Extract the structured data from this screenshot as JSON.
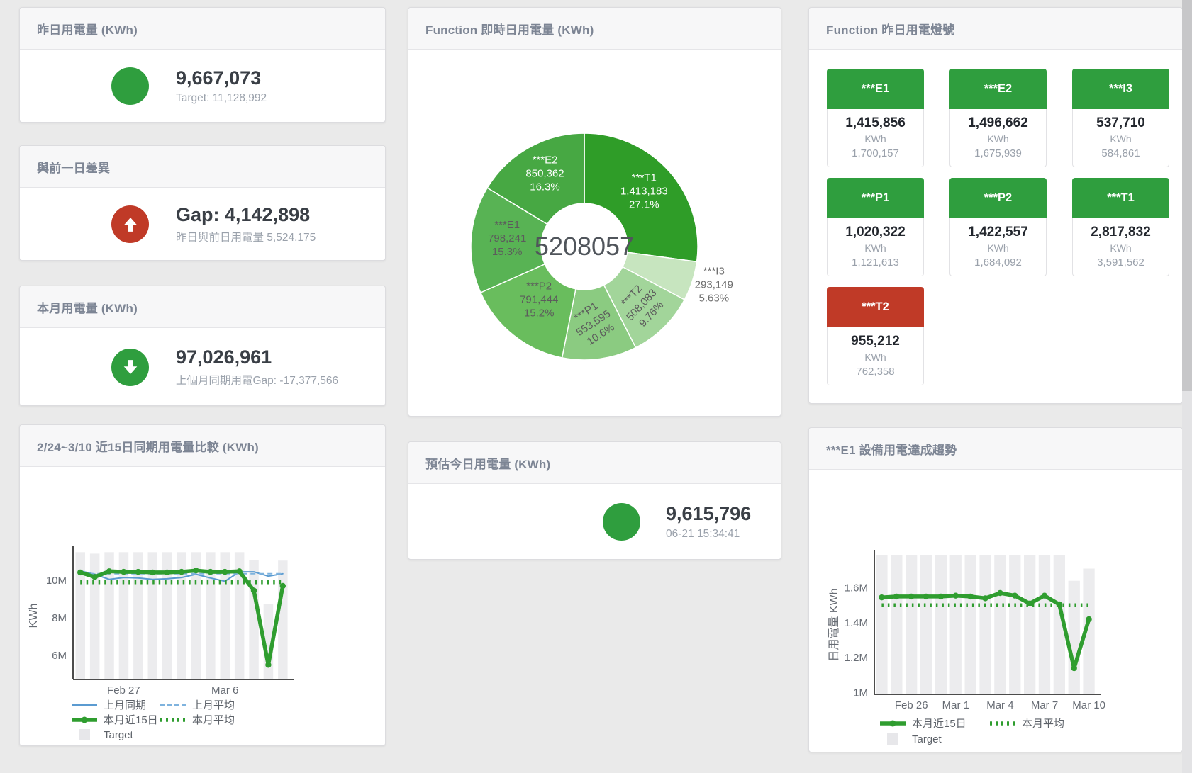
{
  "page": {
    "background": "#eaeaea"
  },
  "theme": {
    "green": "#2f9e3e",
    "red": "#c03a27",
    "title_color": "#7d8594"
  },
  "cards": {
    "yesterday": {
      "title": "昨日用電量 (KWh)",
      "value": "9,667,073",
      "subtext": "Target: 11,128,992",
      "status": "green",
      "icon": "circle"
    },
    "day_gap": {
      "title": "與前一日差異",
      "value": "Gap: 4,142,898",
      "subtext": "昨日與前日用電量 5,524,175",
      "status": "red",
      "icon": "arrow-up"
    },
    "month": {
      "title": "本月用電量 (KWh)",
      "value": "97,026,961",
      "subtext": "上個月同期用電Gap: -17,377,566",
      "status": "green",
      "icon": "arrow-down"
    },
    "compare": {
      "title": "2/24~3/10 近15日同期用電量比較 (KWh)"
    },
    "function_realtime": {
      "title": "Function 即時日用電量 (KWh)"
    },
    "today_estimate": {
      "title": "預估今日用電量 (KWh)",
      "value": "9,615,796",
      "subtext": "06-21 15:34:41",
      "status": "green",
      "icon": "circle"
    },
    "function_lights": {
      "title": "Function 昨日用電燈號",
      "unit_label": "KWh",
      "tiles": [
        {
          "label": "***E1",
          "value": "1,415,856",
          "unit": "KWh",
          "target": "1,700,157",
          "color": "green"
        },
        {
          "label": "***E2",
          "value": "1,496,662",
          "unit": "KWh",
          "target": "1,675,939",
          "color": "green"
        },
        {
          "label": "***I3",
          "value": "537,710",
          "unit": "KWh",
          "target": "584,861",
          "color": "green"
        },
        {
          "label": "***P1",
          "value": "1,020,322",
          "unit": "KWh",
          "target": "1,121,613",
          "color": "green"
        },
        {
          "label": "***P2",
          "value": "1,422,557",
          "unit": "KWh",
          "target": "1,684,092",
          "color": "green"
        },
        {
          "label": "***T1",
          "value": "2,817,832",
          "unit": "KWh",
          "target": "3,591,562",
          "color": "green"
        },
        {
          "label": "***T2",
          "value": "955,212",
          "unit": "KWh",
          "target": "762,358",
          "color": "red"
        }
      ]
    },
    "e1_trend": {
      "title": "***E1 設備用電達成趨勢"
    }
  },
  "chart_data": [
    {
      "id": "function-realtime-donut",
      "type": "pie",
      "title": "Function 即時日用電量 (KWh)",
      "center_label": "5208057",
      "slices": [
        {
          "name": "***T1",
          "value": 1413183,
          "value_label": "1,413,183",
          "pct_label": "27.1%",
          "color": "#2f9d28",
          "text": "light"
        },
        {
          "name": "***I3",
          "value": 293149,
          "value_label": "293,149",
          "pct_label": "5.63%",
          "color": "#c7e5bf",
          "text": "outside"
        },
        {
          "name": "***T2",
          "value": 508083,
          "value_label": "508,083",
          "pct_label": "9.76%",
          "color": "#a2d59a",
          "text": "dark"
        },
        {
          "name": "***P1",
          "value": 553595,
          "value_label": "553,595",
          "pct_label": "10.6%",
          "color": "#8bcb81",
          "text": "dark"
        },
        {
          "name": "***P2",
          "value": 791444,
          "value_label": "791,444",
          "pct_label": "15.2%",
          "color": "#69bd5d",
          "text": "dark"
        },
        {
          "name": "***E1",
          "value": 798241,
          "value_label": "798,241",
          "pct_label": "15.3%",
          "color": "#58b354",
          "text": "dark"
        },
        {
          "name": "***E2",
          "value": 850362,
          "value_label": "850,362",
          "pct_label": "16.3%",
          "color": "#47a843",
          "text": "light"
        }
      ]
    },
    {
      "id": "compare-15d",
      "type": "line",
      "title": "2/24~3/10 近15日同期用電量比較 (KWh)",
      "ylabel": "KWh",
      "ylim": [
        4720000,
        11510000
      ],
      "yticks": [
        {
          "value": 6000000,
          "label": "6M"
        },
        {
          "value": 8000000,
          "label": "8M"
        },
        {
          "value": 10000000,
          "label": "10M"
        }
      ],
      "points": 15,
      "xticks": [
        {
          "index": 3,
          "label": "Feb 27"
        },
        {
          "index": 10,
          "label": "Mar 6"
        }
      ],
      "bars": {
        "name": "Target",
        "color": "#ececee",
        "values": [
          11500000,
          11420000,
          11500000,
          11500000,
          11500000,
          11500000,
          11500000,
          11500000,
          11500000,
          11500000,
          11500000,
          11500000,
          11080000,
          8750000,
          11050000
        ]
      },
      "series": [
        {
          "name": "上月同期",
          "style": "solid",
          "color": "#5b9bd1",
          "width": 2,
          "dots": false,
          "values": [
            10500000,
            10320000,
            10050000,
            10150000,
            10120000,
            10050000,
            10080000,
            10150000,
            10320000,
            10120000,
            9950000,
            10450000,
            10450000,
            10220000,
            10350000
          ]
        },
        {
          "name": "上月平均",
          "style": "dashed",
          "color": "#7fb3de",
          "width": 2,
          "dots": false,
          "values": [
            10350000,
            10350000,
            10350000,
            10350000,
            10350000,
            10350000,
            10350000,
            10350000,
            10350000,
            10350000,
            10350000,
            10350000,
            10350000,
            10350000,
            10350000
          ]
        },
        {
          "name": "本月近15日",
          "style": "solid",
          "color": "#2f9d2f",
          "width": 5.5,
          "dots": true,
          "values": [
            10420000,
            10180000,
            10480000,
            10450000,
            10450000,
            10420000,
            10420000,
            10450000,
            10520000,
            10450000,
            10450000,
            10480000,
            9450000,
            5500000,
            9700000
          ]
        },
        {
          "name": "本月平均",
          "style": "dotted",
          "color": "#2f9d2f",
          "width": 5.5,
          "dots": false,
          "values": [
            9900000,
            9900000,
            9900000,
            9900000,
            9900000,
            9900000,
            9900000,
            9900000,
            9900000,
            9900000,
            9900000,
            9900000,
            9900000,
            9900000,
            9900000
          ]
        }
      ],
      "legend": [
        [
          {
            "glyph": "line",
            "color": "#5b9bd1",
            "label": "上月同期"
          },
          {
            "glyph": "dash",
            "color": "#7fb3de",
            "label": "上月平均"
          }
        ],
        [
          {
            "glyph": "thick",
            "color": "#2f9d2f",
            "label": "本月近15日"
          },
          {
            "glyph": "dots",
            "color": "#2f9d2f",
            "label": "本月平均"
          }
        ],
        [
          {
            "glyph": "box",
            "color": "#e7e7ea",
            "label": "Target"
          }
        ]
      ]
    },
    {
      "id": "e1-trend",
      "type": "line",
      "title": "***E1 設備用電達成趨勢",
      "ylabel": "日用電量 KWh",
      "ylim": [
        990000,
        1785000
      ],
      "yticks": [
        {
          "value": 1000000,
          "label": "1M"
        },
        {
          "value": 1200000,
          "label": "1.2M"
        },
        {
          "value": 1400000,
          "label": "1.4M"
        },
        {
          "value": 1600000,
          "label": "1.6M"
        }
      ],
      "points": 15,
      "xticks": [
        {
          "index": 2,
          "label": "Feb 26"
        },
        {
          "index": 5,
          "label": "Mar 1"
        },
        {
          "index": 8,
          "label": "Mar 4"
        },
        {
          "index": 11,
          "label": "Mar 7"
        },
        {
          "index": 14,
          "label": "Mar 10"
        }
      ],
      "bars": {
        "name": "Target",
        "color": "#ececee",
        "values": [
          1785000,
          1785000,
          1785000,
          1785000,
          1785000,
          1785000,
          1785000,
          1785000,
          1785000,
          1785000,
          1785000,
          1785000,
          1785000,
          1640000,
          1710000
        ]
      },
      "series": [
        {
          "name": "本月近15日",
          "style": "solid",
          "color": "#2f9d2f",
          "width": 5.5,
          "dots": true,
          "values": [
            1545000,
            1550000,
            1550000,
            1550000,
            1550000,
            1555000,
            1550000,
            1540000,
            1570000,
            1555000,
            1510000,
            1555000,
            1505000,
            1140000,
            1420000
          ]
        },
        {
          "name": "本月平均",
          "style": "dotted",
          "color": "#2f9d2f",
          "width": 5.5,
          "dots": false,
          "values": [
            1500000,
            1500000,
            1500000,
            1500000,
            1500000,
            1500000,
            1500000,
            1500000,
            1500000,
            1500000,
            1500000,
            1500000,
            1500000,
            1500000,
            1500000
          ]
        }
      ],
      "legend": [
        [
          {
            "glyph": "thick",
            "color": "#2f9d2f",
            "label": "本月近15日"
          },
          {
            "glyph": "dots",
            "color": "#2f9d2f",
            "label": "本月平均"
          }
        ],
        [
          {
            "glyph": "box",
            "color": "#e7e7ea",
            "label": "Target"
          }
        ]
      ]
    }
  ]
}
